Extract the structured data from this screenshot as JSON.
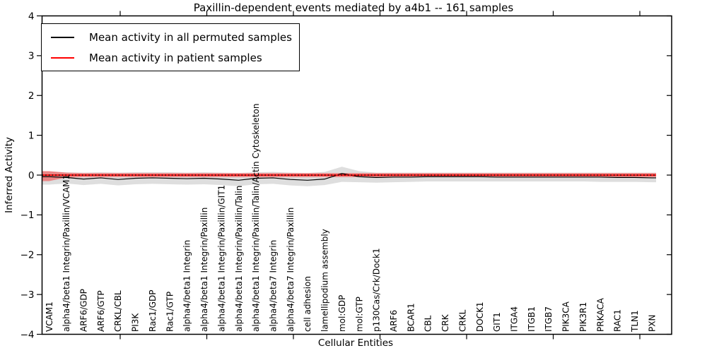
{
  "figure": {
    "title": "Paxillin-dependent events mediated by a4b1 -- 161 samples",
    "xlabel": "Cellular Entities",
    "ylabel": "Inferred Activity"
  },
  "legend": {
    "items": [
      {
        "label": "Mean activity in all permuted samples",
        "color": "#000000"
      },
      {
        "label": "Mean activity in patient samples",
        "color": "#ff0000"
      }
    ]
  },
  "colors": {
    "background": "#ffffff",
    "frame": "#000000",
    "permuted_line": "#000000",
    "patient_line": "#ff0000",
    "permuted_band": "rgba(0,0,0,0.13)",
    "patient_band": "rgba(255,0,0,0.40)",
    "zero_line": "#000000"
  },
  "chart_data": {
    "type": "line",
    "title": "Paxillin-dependent events mediated by a4b1 -- 161 samples",
    "xlabel": "Cellular Entities",
    "ylabel": "Inferred Activity",
    "ylim": [
      -4,
      4
    ],
    "yticks": [
      -4,
      -3,
      -2,
      -1,
      0,
      1,
      2,
      3,
      4
    ],
    "ytick_labels": [
      "−4",
      "−3",
      "−2",
      "−1",
      "0",
      "1",
      "2",
      "3",
      "4"
    ],
    "grid": false,
    "legend_position": "upper left",
    "zero_line": {
      "value": 0,
      "style": "dotted",
      "color": "#000000"
    },
    "categories": [
      "VCAM1",
      "alpha4/beta1 Integrin/Paxillin/VCAM1",
      "ARF6/GDP",
      "ARF6/GTP",
      "CRKL/CBL",
      "PI3K",
      "Rac1/GDP",
      "Rac1/GTP",
      "alpha4/beta1 Integrin",
      "alpha4/beta1 Integrin/Paxillin",
      "alpha4/beta1 Integrin/Paxillin/GIT1",
      "alpha4/beta1 Integrin/Paxillin/Talin",
      "alpha4/beta1 Integrin/Paxillin/Talin/Actin Cytoskeleton",
      "alpha4/beta7 Integrin",
      "alpha4/beta7 Integrin/Paxillin",
      "cell adhesion",
      "lamellipodium assembly",
      "mol:GDP",
      "mol:GTP",
      "p130Cas/Crk/Dock1",
      "ARF6",
      "BCAR1",
      "CBL",
      "CRK",
      "CRKL",
      "DOCK1",
      "GIT1",
      "ITGA4",
      "ITGB1",
      "ITGB7",
      "PIK3CA",
      "PIK3R1",
      "PRKACA",
      "RAC1",
      "TLN1",
      "PXN"
    ],
    "series": [
      {
        "name": "Mean activity in all permuted samples",
        "color": "#000000",
        "band_color": "rgba(0,0,0,0.13)",
        "values": [
          -0.04,
          -0.06,
          -0.1,
          -0.07,
          -0.11,
          -0.08,
          -0.07,
          -0.08,
          -0.09,
          -0.08,
          -0.1,
          -0.13,
          -0.08,
          -0.07,
          -0.11,
          -0.13,
          -0.1,
          0.04,
          -0.04,
          -0.06,
          -0.05,
          -0.05,
          -0.04,
          -0.04,
          -0.04,
          -0.04,
          -0.05,
          -0.05,
          -0.05,
          -0.05,
          -0.05,
          -0.05,
          -0.05,
          -0.06,
          -0.06,
          -0.07
        ],
        "band_upper": [
          0.09,
          0.07,
          0.06,
          0.07,
          0.06,
          0.07,
          0.07,
          0.07,
          0.06,
          0.07,
          0.06,
          0.05,
          0.07,
          0.08,
          0.06,
          0.05,
          0.08,
          0.21,
          0.1,
          0.06,
          0.06,
          0.06,
          0.06,
          0.06,
          0.06,
          0.06,
          0.06,
          0.06,
          0.06,
          0.06,
          0.06,
          0.06,
          0.06,
          0.06,
          0.06,
          0.06
        ],
        "band_lower": [
          -0.24,
          -0.21,
          -0.25,
          -0.22,
          -0.26,
          -0.23,
          -0.22,
          -0.23,
          -0.24,
          -0.23,
          -0.25,
          -0.28,
          -0.23,
          -0.22,
          -0.26,
          -0.28,
          -0.25,
          -0.17,
          -0.18,
          -0.19,
          -0.18,
          -0.17,
          -0.16,
          -0.16,
          -0.16,
          -0.16,
          -0.16,
          -0.16,
          -0.16,
          -0.16,
          -0.16,
          -0.16,
          -0.17,
          -0.17,
          -0.17,
          -0.18
        ]
      },
      {
        "name": "Mean activity in patient samples",
        "color": "#ff0000",
        "band_color": "rgba(255,0,0,0.40)",
        "values": [
          0,
          0,
          0,
          0,
          0,
          0,
          0,
          0,
          0,
          0,
          0,
          0,
          0,
          0,
          0,
          0,
          0,
          0,
          0,
          0,
          0,
          0,
          0,
          0,
          0,
          0,
          0,
          0,
          0,
          0,
          0,
          0,
          0,
          0,
          0,
          0
        ],
        "band_upper": [
          0.1,
          0.06,
          0.05,
          0.05,
          0.05,
          0.05,
          0.05,
          0.05,
          0.05,
          0.05,
          0.05,
          0.05,
          0.05,
          0.05,
          0.05,
          0.05,
          0.05,
          0.05,
          0.05,
          0.05,
          0.05,
          0.05,
          0.05,
          0.05,
          0.05,
          0.05,
          0.05,
          0.05,
          0.05,
          0.05,
          0.05,
          0.05,
          0.05,
          0.05,
          0.05,
          0.05
        ],
        "band_lower": [
          -0.15,
          -0.06,
          -0.05,
          -0.05,
          -0.05,
          -0.05,
          -0.05,
          -0.05,
          -0.05,
          -0.05,
          -0.05,
          -0.05,
          -0.05,
          -0.05,
          -0.05,
          -0.05,
          -0.05,
          -0.05,
          -0.05,
          -0.05,
          -0.05,
          -0.05,
          -0.05,
          -0.05,
          -0.05,
          -0.05,
          -0.05,
          -0.05,
          -0.05,
          -0.05,
          -0.05,
          -0.05,
          -0.05,
          -0.05,
          -0.05,
          -0.05
        ]
      }
    ]
  }
}
